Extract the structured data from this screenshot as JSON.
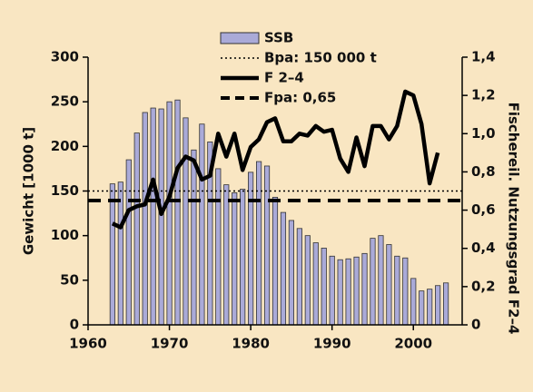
{
  "chart_data": {
    "type": "bar-line",
    "x": [
      1963,
      1964,
      1965,
      1966,
      1967,
      1968,
      1969,
      1970,
      1971,
      1972,
      1973,
      1974,
      1975,
      1976,
      1977,
      1978,
      1979,
      1980,
      1981,
      1982,
      1983,
      1984,
      1985,
      1986,
      1987,
      1988,
      1989,
      1990,
      1991,
      1992,
      1993,
      1994,
      1995,
      1996,
      1997,
      1998,
      1999,
      2000,
      2001,
      2002,
      2003,
      2004
    ],
    "series": [
      {
        "name": "SSB",
        "type": "bar",
        "color": "#aaaad8",
        "values": [
          158,
          160,
          185,
          215,
          238,
          243,
          242,
          250,
          252,
          232,
          196,
          225,
          205,
          175,
          157,
          148,
          152,
          171,
          183,
          178,
          143,
          126,
          117,
          108,
          100,
          92,
          86,
          77,
          73,
          74,
          76,
          80,
          97,
          100,
          90,
          77,
          75,
          52,
          38,
          40,
          44,
          47
        ]
      },
      {
        "name": "F 2–4",
        "type": "line",
        "axis": "y2",
        "color": "#000000",
        "values": [
          0.53,
          0.51,
          0.6,
          0.62,
          0.63,
          0.76,
          0.58,
          0.67,
          0.82,
          0.88,
          0.86,
          0.76,
          0.78,
          1.0,
          0.88,
          1.0,
          0.81,
          0.93,
          0.97,
          1.06,
          1.08,
          0.96,
          0.96,
          1.0,
          0.99,
          1.04,
          1.01,
          1.02,
          0.87,
          0.8,
          0.98,
          0.83,
          1.04,
          1.04,
          0.97,
          1.04,
          1.22,
          1.2,
          1.05,
          0.74,
          0.9,
          null
        ]
      }
    ],
    "reference_lines": [
      {
        "name": "Bpa: 150 000 t",
        "value": 150,
        "axis": "y",
        "style": "dotted"
      },
      {
        "name": "Fpa: 0,65",
        "value": 0.65,
        "axis": "y2",
        "style": "dashed"
      }
    ],
    "ylabel": "Gewicht [1000 t]",
    "y2label": "Fischereil. Nutzungsgrad F2–4",
    "xlim": [
      1960,
      2006
    ],
    "xticks": [
      1960,
      1970,
      1980,
      1990,
      2000
    ],
    "ylim": [
      0,
      300
    ],
    "yticks": [
      0,
      50,
      100,
      150,
      200,
      250,
      300
    ],
    "y2lim": [
      0,
      1.4
    ],
    "y2ticks": [
      0,
      {
        "value": 0.2,
        "label": "0,2"
      },
      {
        "value": 0.4,
        "label": "0,4"
      },
      {
        "value": 0.6,
        "label": "0,6"
      },
      {
        "value": 0.8,
        "label": "0,8"
      },
      {
        "value": 1.0,
        "label": "1,0"
      },
      {
        "value": 1.2,
        "label": "1,2"
      },
      {
        "value": 1.4,
        "label": "1,4"
      }
    ]
  }
}
